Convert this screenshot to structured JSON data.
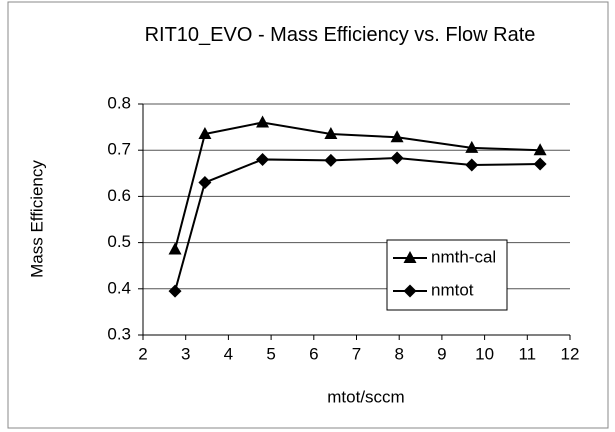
{
  "chart_data": {
    "type": "line",
    "title": "RIT10_EVO - Mass Efficiency vs. Flow Rate",
    "xlabel": "mtot/sccm",
    "ylabel": "Mass Efficiency",
    "x": [
      2.75,
      3.45,
      4.8,
      6.4,
      7.95,
      9.7,
      11.3
    ],
    "series": [
      {
        "name": "nmth-cal",
        "color": "#000000",
        "marker": "triangle",
        "values": [
          0.485,
          0.735,
          0.76,
          0.735,
          0.728,
          0.705,
          0.7
        ]
      },
      {
        "name": "nmtot",
        "color": "#000000",
        "marker": "diamond",
        "values": [
          0.395,
          0.63,
          0.68,
          0.678,
          0.683,
          0.668,
          0.67
        ]
      }
    ],
    "xlim": [
      2,
      12
    ],
    "xticks": [
      2,
      3,
      4,
      5,
      6,
      7,
      8,
      9,
      10,
      11,
      12
    ],
    "ylim": [
      0.3,
      0.8
    ],
    "yticks": [
      0.3,
      0.4,
      0.5,
      0.6,
      0.7,
      0.8
    ],
    "grid": true,
    "legend": "lower right"
  }
}
